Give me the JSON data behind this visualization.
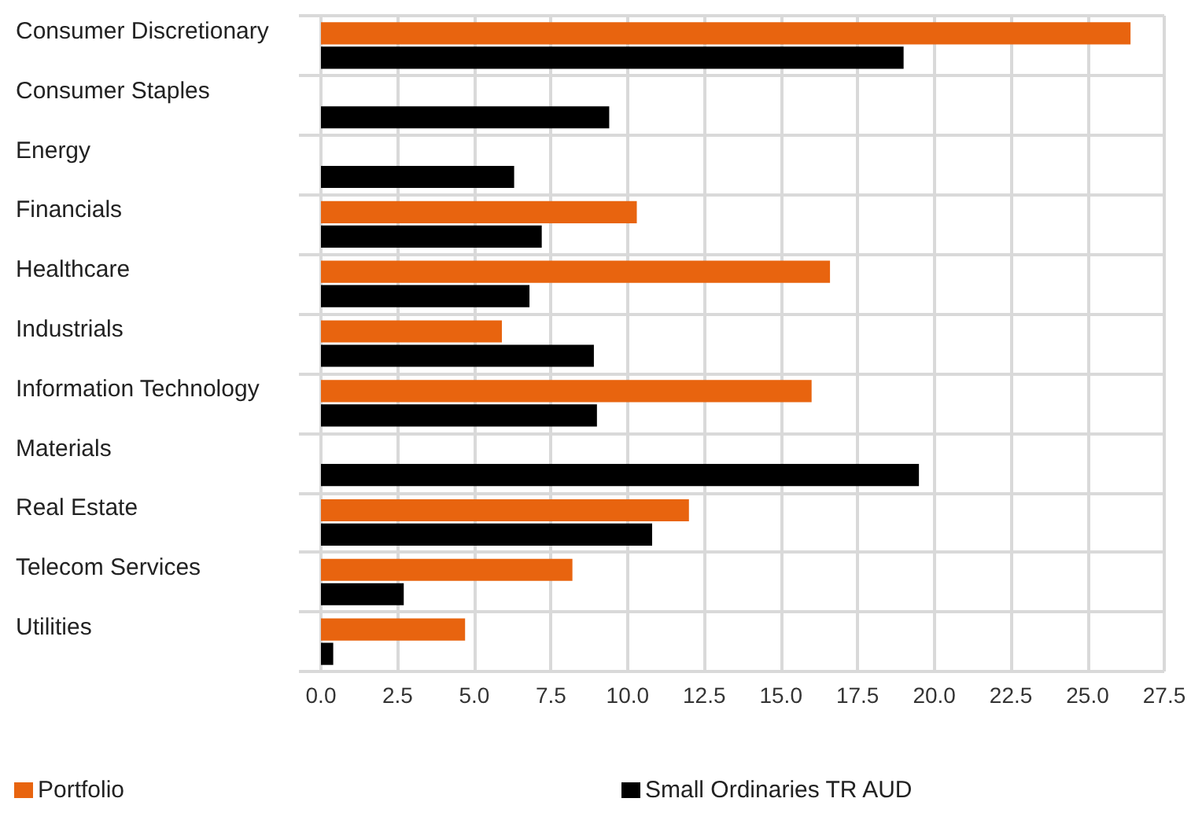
{
  "chart_data": {
    "type": "bar",
    "orientation": "horizontal",
    "categories": [
      "Consumer Discretionary",
      "Consumer Staples",
      "Energy",
      "Financials",
      "Healthcare",
      "Industrials",
      "Information Technology",
      "Materials",
      "Real Estate",
      "Telecom Services",
      "Utilities"
    ],
    "series": [
      {
        "name": "Portfolio",
        "color": "#e8640f",
        "values": [
          26.4,
          0,
          0,
          10.3,
          16.6,
          5.9,
          16.0,
          0,
          12.0,
          8.2,
          4.7
        ]
      },
      {
        "name": "Small Ordinaries TR AUD",
        "color": "#000000",
        "values": [
          19.0,
          9.4,
          6.3,
          7.2,
          6.8,
          8.9,
          9.0,
          19.5,
          10.8,
          2.7,
          0.4
        ]
      }
    ],
    "xlim": [
      0,
      27.5
    ],
    "xticks": [
      {
        "value": 0,
        "label": "0.0"
      },
      {
        "value": 2.5,
        "label": "2.5"
      },
      {
        "value": 5,
        "label": "5.0"
      },
      {
        "value": 7.5,
        "label": "7.5"
      },
      {
        "value": 10,
        "label": "10.0"
      },
      {
        "value": 12.5,
        "label": "12.5"
      },
      {
        "value": 15,
        "label": "15.0"
      },
      {
        "value": 17.5,
        "label": "17.5"
      },
      {
        "value": 20,
        "label": "20.0"
      },
      {
        "value": 22.5,
        "label": "22.5"
      },
      {
        "value": 25,
        "label": "25.0"
      },
      {
        "value": 27.5,
        "label": "27.5"
      }
    ],
    "grid": true,
    "legend": "bottom left"
  }
}
